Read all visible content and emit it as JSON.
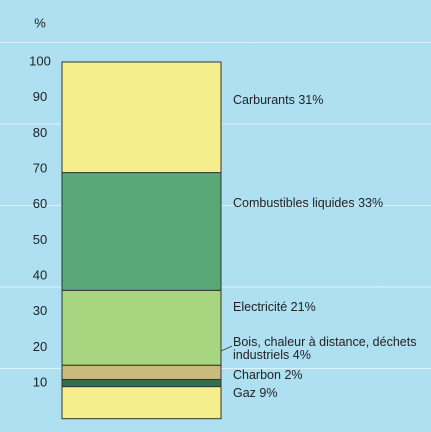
{
  "chart_data": {
    "type": "stacked-bar",
    "y_label": "%",
    "series": [
      {
        "name": "Gaz",
        "color": "#f4ee8c",
        "values": [
          9
        ],
        "value_labels": [
          "9%"
        ]
      },
      {
        "name": "Charbon",
        "color": "#2f6f52",
        "values": [
          2
        ],
        "value_labels": [
          "2%"
        ]
      },
      {
        "name": "Bois, chaleur à distance, déchets industriels",
        "color": "#c9bb7e",
        "values": [
          4
        ],
        "value_labels": [
          "4%"
        ]
      },
      {
        "name": "Electricité",
        "color": "#a8d680",
        "values": [
          21
        ],
        "value_labels": [
          "21%"
        ]
      },
      {
        "name": "Combustibles liquides",
        "color": "#5aa878",
        "values": [
          33
        ],
        "value_labels": [
          "33%"
        ]
      },
      {
        "name": "Carburants",
        "color": "#f4ee8c",
        "values": [
          31
        ],
        "value_labels": [
          "31%"
        ]
      }
    ],
    "ylim": [
      0,
      100
    ],
    "yticks": [
      10,
      20,
      30,
      40,
      50,
      60,
      70,
      80,
      90,
      100
    ]
  }
}
